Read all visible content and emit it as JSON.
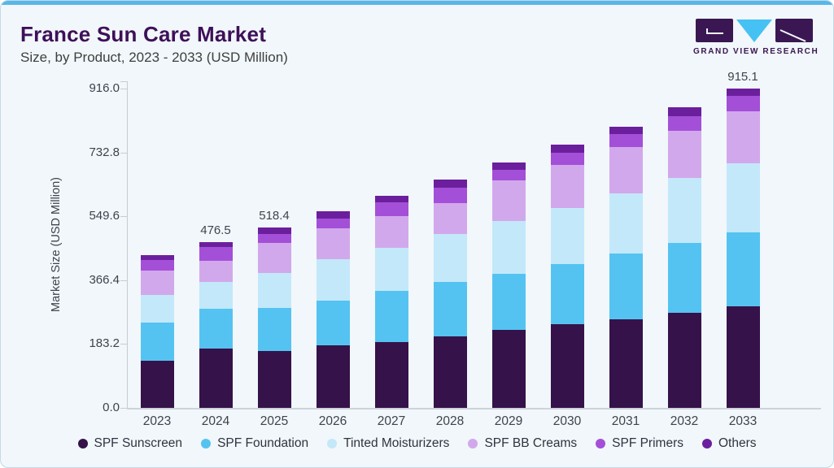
{
  "header": {
    "title": "France Sun Care Market",
    "subtitle": "Size, by Product, 2023 - 2033 (USD Million)",
    "brand": "GRAND VIEW RESEARCH"
  },
  "colors": {
    "card_background": "#f1f7fa",
    "top_accent": "#57b7e8",
    "title": "#3e1059",
    "axis": "#c5ccd4"
  },
  "chart_data": {
    "type": "bar",
    "stacked": true,
    "title": "France Sun Care Market",
    "subtitle": "Size, by Product, 2023 - 2033 (USD Million)",
    "ylabel": "Market Size (USD Million)",
    "xlabel": "",
    "ylim": [
      0,
      937
    ],
    "grid": false,
    "legend_position": "bottom",
    "ytick_labels": [
      "0.0",
      "183.2",
      "366.4",
      "549.6",
      "732.8",
      "916.0"
    ],
    "categories": [
      "2023",
      "2024",
      "2025",
      "2026",
      "2027",
      "2028",
      "2029",
      "2030",
      "2031",
      "2032",
      "2033"
    ],
    "series": [
      {
        "name": "SPF Sunscreen",
        "color": "#351249",
        "values": [
          136.3,
          171.0,
          163.0,
          179.0,
          188.7,
          205.0,
          223.6,
          239.6,
          253.5,
          272.1,
          292.3
        ]
      },
      {
        "name": "SPF Foundation",
        "color": "#55c3f1",
        "values": [
          109.1,
          113.3,
          122.7,
          129.5,
          148.0,
          155.9,
          161.6,
          174.0,
          189.9,
          202.1,
          210.2
        ]
      },
      {
        "name": "Tinted Moisturizers",
        "color": "#c3e8fa",
        "values": [
          79.2,
          76.6,
          101.9,
          117.2,
          122.9,
          137.5,
          151.3,
          159.3,
          172.2,
          186.0,
          199.7
        ]
      },
      {
        "name": "SPF BB Creams",
        "color": "#d2a8ec",
        "values": [
          70.3,
          60.7,
          86.6,
          89.0,
          91.5,
          89.0,
          115.5,
          125.2,
          133.4,
          135.8,
          149.6
        ]
      },
      {
        "name": "SPF Primers",
        "color": "#a44fd8",
        "values": [
          28.4,
          40.5,
          24.2,
          28.2,
          38.8,
          44.4,
          30.1,
          34.9,
          36.4,
          42.0,
          42.7
        ]
      },
      {
        "name": "Others",
        "color": "#6b1f9d",
        "values": [
          14.5,
          14.4,
          20.0,
          20.3,
          19.4,
          22.6,
          22.5,
          23.3,
          21.8,
          24.2,
          20.6
        ]
      }
    ],
    "bar_value_labels": {
      "2024": "476.5",
      "2025": "518.4",
      "2033": "915.1"
    },
    "totals": [
      437.8,
      476.5,
      518.4,
      563.2,
      609.3,
      654.4,
      704.6,
      756.3,
      807.2,
      862.2,
      915.1
    ]
  }
}
